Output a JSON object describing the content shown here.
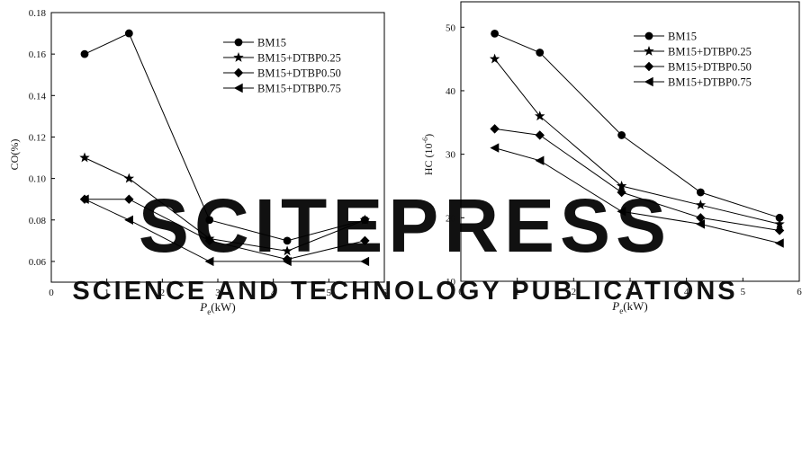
{
  "watermark": {
    "main": "SCITEPRESS",
    "sub": "SCIENCE AND TECHNOLOGY PUBLICATIONS",
    "color": "#e6e6e6"
  },
  "chart_data": [
    {
      "type": "line",
      "ylabel": "CO(%)",
      "xlabel_main": "P",
      "xlabel_sub": "e",
      "xlabel_unit": "(kW)",
      "xlim": [
        0,
        6
      ],
      "ylim": [
        0.05,
        0.18
      ],
      "xticks": [
        0,
        1,
        2,
        3,
        4,
        5,
        6
      ],
      "yticks": [
        0.06,
        0.08,
        0.1,
        0.12,
        0.14,
        0.16,
        0.18
      ],
      "ytick_labels": [
        "0.06",
        "0.08",
        "0.10",
        "0.12",
        "0.14",
        "0.16",
        "0.18"
      ],
      "x": [
        0.6,
        1.4,
        2.85,
        4.25,
        5.65
      ],
      "legend_position": "top-right",
      "series": [
        {
          "name": "BM15",
          "marker": "circle",
          "values": [
            0.16,
            0.17,
            0.08,
            0.07,
            0.08
          ]
        },
        {
          "name": "BM15+DTBP0.25",
          "marker": "star",
          "values": [
            0.11,
            0.1,
            0.071,
            0.065,
            0.08
          ]
        },
        {
          "name": "BM15+DTBP0.50",
          "marker": "diamond",
          "values": [
            0.09,
            0.09,
            0.07,
            0.061,
            0.07
          ]
        },
        {
          "name": "BM15+DTBP0.75",
          "marker": "triangle-left",
          "values": [
            0.09,
            0.08,
            0.06,
            0.06,
            0.06
          ]
        }
      ]
    },
    {
      "type": "line",
      "ylabel": "HC (10",
      "ylabel_sup": "-6",
      "ylabel_end": ")",
      "xlabel_main": "P",
      "xlabel_sub": "e",
      "xlabel_unit": "(kW)",
      "xlim": [
        0,
        6
      ],
      "ylim": [
        10,
        54
      ],
      "xticks": [
        0,
        1,
        2,
        3,
        4,
        5,
        6
      ],
      "yticks": [
        10,
        20,
        30,
        40,
        50
      ],
      "ytick_labels": [
        "10",
        "20",
        "30",
        "40",
        "50"
      ],
      "x": [
        0.6,
        1.4,
        2.85,
        4.25,
        5.65
      ],
      "legend_position": "top-right",
      "series": [
        {
          "name": "BM15",
          "marker": "circle",
          "values": [
            49,
            46,
            33,
            24,
            20
          ]
        },
        {
          "name": "BM15+DTBP0.25",
          "marker": "star",
          "values": [
            45,
            36,
            25,
            22,
            19
          ]
        },
        {
          "name": "BM15+DTBP0.50",
          "marker": "diamond",
          "values": [
            34,
            33,
            24,
            20,
            18
          ]
        },
        {
          "name": "BM15+DTBP0.75",
          "marker": "triangle-left",
          "values": [
            31,
            29,
            21,
            19,
            16
          ]
        }
      ]
    }
  ]
}
